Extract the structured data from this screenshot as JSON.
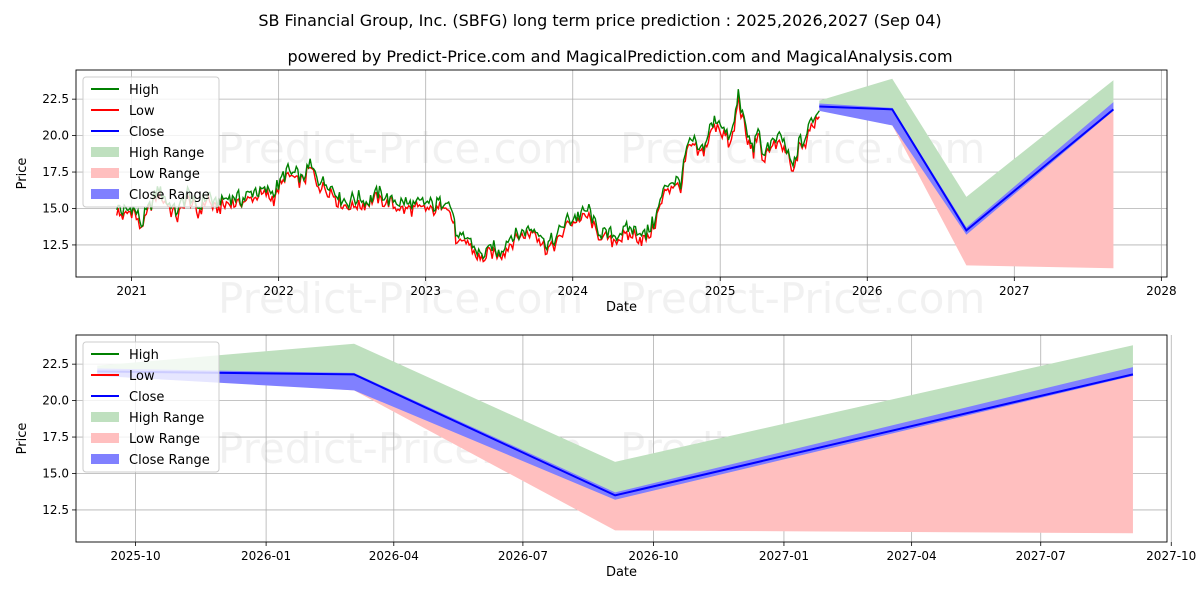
{
  "title": "SB Financial Group, Inc. (SBFG) long term price prediction : 2025,2026,2027 (Sep 04)",
  "subtitle": "powered by Predict-Price.com and MagicalPrediction.com and MagicalAnalysis.com",
  "watermark": "Predict-Price.com",
  "colors": {
    "high": "#008000",
    "low": "#ff0000",
    "close": "#0000ff",
    "high_range": "#bfe0bf",
    "low_range": "#ffbfbf",
    "close_range": "#8080ff",
    "grid": "#b0b0b0"
  },
  "chart_data": [
    {
      "type": "line",
      "panel": "top",
      "xlabel": "Date",
      "ylabel": "Price",
      "xlim": [
        "2020-08-16",
        "2028-01-15"
      ],
      "ylim": [
        10.3,
        24.5
      ],
      "x_ticks": [
        "2021",
        "2022",
        "2023",
        "2024",
        "2025",
        "2026",
        "2027",
        "2028"
      ],
      "x_tick_dates": [
        "2021-01-01",
        "2022-01-01",
        "2023-01-01",
        "2024-01-01",
        "2025-01-01",
        "2026-01-01",
        "2027-01-01",
        "2028-01-01"
      ],
      "y_ticks": [
        "12.5",
        "15.0",
        "17.5",
        "20.0",
        "22.5"
      ],
      "grid": true,
      "legend": {
        "position": "top-left",
        "entries": [
          "High",
          "Low",
          "Close",
          "High Range",
          "Low Range",
          "Close Range"
        ]
      },
      "history": [
        [
          "2020-11-25",
          15.0
        ],
        [
          "2020-12-10",
          14.6
        ],
        [
          "2021-01-05",
          15.0
        ],
        [
          "2021-01-25",
          13.8
        ],
        [
          "2021-02-15",
          15.1
        ],
        [
          "2021-03-10",
          16.2
        ],
        [
          "2021-04-01",
          15.3
        ],
        [
          "2021-04-25",
          14.6
        ],
        [
          "2021-05-20",
          15.9
        ],
        [
          "2021-06-15",
          14.8
        ],
        [
          "2021-07-10",
          15.9
        ],
        [
          "2021-07-25",
          15.1
        ],
        [
          "2021-09-01",
          15.6
        ],
        [
          "2021-10-01",
          15.5
        ],
        [
          "2021-11-01",
          16.0
        ],
        [
          "2021-12-01",
          16.1
        ],
        [
          "2021-12-20",
          15.9
        ],
        [
          "2022-01-20",
          17.4
        ],
        [
          "2022-02-10",
          17.2
        ],
        [
          "2022-03-01",
          16.9
        ],
        [
          "2022-03-20",
          17.9
        ],
        [
          "2022-04-10",
          16.8
        ],
        [
          "2022-05-10",
          16.4
        ],
        [
          "2022-06-01",
          15.6
        ],
        [
          "2022-06-20",
          15.3
        ],
        [
          "2022-07-15",
          15.5
        ],
        [
          "2022-08-10",
          15.4
        ],
        [
          "2022-09-01",
          15.9
        ],
        [
          "2022-10-01",
          15.5
        ],
        [
          "2022-11-01",
          15.2
        ],
        [
          "2022-12-01",
          15.1
        ],
        [
          "2023-01-01",
          15.2
        ],
        [
          "2023-01-25",
          15.0
        ],
        [
          "2023-02-20",
          15.6
        ],
        [
          "2023-03-10",
          14.4
        ],
        [
          "2023-03-20",
          12.6
        ],
        [
          "2023-04-15",
          12.9
        ],
        [
          "2023-05-05",
          12.0
        ],
        [
          "2023-05-20",
          11.6
        ],
        [
          "2023-06-15",
          12.2
        ],
        [
          "2023-07-01",
          11.8
        ],
        [
          "2023-08-01",
          12.9
        ],
        [
          "2023-09-01",
          13.3
        ],
        [
          "2023-10-01",
          13.6
        ],
        [
          "2023-10-25",
          12.4
        ],
        [
          "2023-11-20",
          12.7
        ],
        [
          "2023-12-15",
          14.0
        ],
        [
          "2024-01-10",
          14.3
        ],
        [
          "2024-02-10",
          14.7
        ],
        [
          "2024-03-01",
          13.4
        ],
        [
          "2024-03-20",
          13.1
        ],
        [
          "2024-04-15",
          13.0
        ],
        [
          "2024-05-10",
          13.3
        ],
        [
          "2024-06-01",
          13.4
        ],
        [
          "2024-07-01",
          13.0
        ],
        [
          "2024-07-20",
          13.9
        ],
        [
          "2024-08-05",
          15.3
        ],
        [
          "2024-08-20",
          16.5
        ],
        [
          "2024-09-10",
          16.8
        ],
        [
          "2024-09-25",
          16.6
        ],
        [
          "2024-10-10",
          19.0
        ],
        [
          "2024-10-25",
          19.5
        ],
        [
          "2024-11-10",
          18.8
        ],
        [
          "2024-11-25",
          19.3
        ],
        [
          "2024-12-10",
          20.5
        ],
        [
          "2024-12-25",
          21.0
        ],
        [
          "2025-01-10",
          20.3
        ],
        [
          "2025-01-25",
          19.5
        ],
        [
          "2025-02-05",
          20.7
        ],
        [
          "2025-02-15",
          22.8
        ],
        [
          "2025-02-25",
          21.3
        ],
        [
          "2025-03-10",
          19.8
        ],
        [
          "2025-03-25",
          19.0
        ],
        [
          "2025-04-05",
          20.6
        ],
        [
          "2025-04-15",
          18.2
        ],
        [
          "2025-04-25",
          19.1
        ],
        [
          "2025-05-15",
          19.4
        ],
        [
          "2025-06-01",
          19.6
        ],
        [
          "2025-06-15",
          18.9
        ],
        [
          "2025-07-01",
          17.5
        ],
        [
          "2025-07-15",
          19.3
        ],
        [
          "2025-08-01",
          19.6
        ],
        [
          "2025-08-15",
          20.9
        ],
        [
          "2025-09-04",
          21.5
        ]
      ]
    },
    {
      "type": "area",
      "panel": "bottom",
      "xlabel": "Date",
      "ylabel": "Price",
      "xlim": [
        "2025-08-20",
        "2027-09-28"
      ],
      "ylim": [
        10.3,
        24.5
      ],
      "x_ticks": [
        "2025-10",
        "2026-01",
        "2026-04",
        "2026-07",
        "2026-10",
        "2027-01",
        "2027-04",
        "2027-07",
        "2027-10"
      ],
      "x_tick_dates": [
        "2025-10-01",
        "2026-01-01",
        "2026-04-01",
        "2026-07-01",
        "2026-10-01",
        "2027-01-01",
        "2027-04-01",
        "2027-07-01",
        "2027-10-01"
      ],
      "y_ticks": [
        "12.5",
        "15.0",
        "17.5",
        "20.0",
        "22.5"
      ],
      "grid": true,
      "legend": {
        "position": "top-left",
        "entries": [
          "High",
          "Low",
          "Close",
          "High Range",
          "Low Range",
          "Close Range"
        ]
      },
      "forecast": {
        "x": [
          "2025-09-04",
          "2026-03-04",
          "2026-09-04",
          "2027-09-04"
        ],
        "close": [
          22.0,
          21.8,
          13.5,
          21.8
        ],
        "high_range_upper": [
          22.4,
          23.9,
          15.8,
          23.8
        ],
        "high_range_lower": [
          21.9,
          21.7,
          13.5,
          21.7
        ],
        "low_range_upper": [
          22.0,
          21.8,
          13.5,
          21.8
        ],
        "low_range_lower": [
          21.8,
          20.7,
          11.1,
          10.9
        ],
        "close_range_upper": [
          22.2,
          21.9,
          13.7,
          22.3
        ],
        "close_range_lower": [
          21.7,
          20.7,
          13.2,
          21.7
        ]
      }
    }
  ]
}
